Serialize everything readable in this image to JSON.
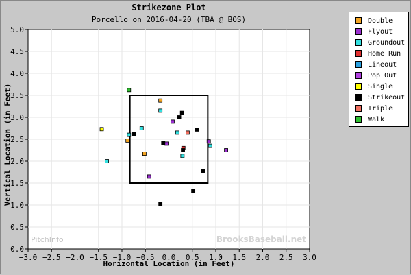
{
  "chart_data": {
    "type": "scatter",
    "title": "Strikezone Plot",
    "subtitle": "Porcello on 2016-04-20 (TBA @ BOS)",
    "xlabel": "Horizontal Location (in Feet)",
    "ylabel": "Vertical Location (in Feet)",
    "xlim": [
      -3.0,
      3.0
    ],
    "ylim": [
      0.0,
      5.0
    ],
    "x_ticks": [
      "−3.0",
      "−2.5",
      "−2.0",
      "−1.5",
      "−1.0",
      "−0.5",
      "0.0",
      "0.5",
      "1.0",
      "1.5",
      "2.0",
      "2.5",
      "3.0"
    ],
    "y_ticks": [
      "0.0",
      "0.5",
      "1.0",
      "1.5",
      "2.0",
      "2.5",
      "3.0",
      "3.5",
      "4.0",
      "4.5",
      "5.0"
    ],
    "grid": true,
    "legend_position": "top-right",
    "strike_zone": {
      "x": [
        -0.83,
        0.83
      ],
      "y": [
        1.5,
        3.5
      ]
    },
    "series": [
      {
        "name": "Double",
        "color": "#f5a623",
        "points": [
          [
            -0.18,
            3.38
          ],
          [
            -0.88,
            2.47
          ],
          [
            -0.52,
            2.17
          ]
        ]
      },
      {
        "name": "Flyout",
        "color": "#9b30d0",
        "points": [
          [
            0.08,
            2.9
          ],
          [
            -0.05,
            2.4
          ],
          [
            0.85,
            2.45
          ],
          [
            1.22,
            2.25
          ],
          [
            -0.42,
            1.65
          ]
        ]
      },
      {
        "name": "Groundout",
        "color": "#33e0e0",
        "points": [
          [
            -0.18,
            3.15
          ],
          [
            -0.58,
            2.75
          ],
          [
            0.18,
            2.65
          ],
          [
            -0.85,
            2.6
          ],
          [
            -1.32,
            2.0
          ],
          [
            0.29,
            2.12
          ],
          [
            0.88,
            2.35
          ]
        ]
      },
      {
        "name": "Home Run",
        "color": "#e03030",
        "points": [
          [
            0.31,
            2.3
          ]
        ]
      },
      {
        "name": "Lineout",
        "color": "#2aa0e0",
        "points": []
      },
      {
        "name": "Pop Out",
        "color": "#b040e0",
        "points": []
      },
      {
        "name": "Single",
        "color": "#ffff00",
        "points": [
          [
            -1.43,
            2.73
          ]
        ]
      },
      {
        "name": "Strikeout",
        "color": "#000000",
        "points": [
          [
            0.28,
            3.1
          ],
          [
            0.22,
            3.0
          ],
          [
            0.6,
            2.72
          ],
          [
            -0.75,
            2.62
          ],
          [
            -0.12,
            2.42
          ],
          [
            0.3,
            2.25
          ],
          [
            0.73,
            1.78
          ],
          [
            0.52,
            1.32
          ],
          [
            -0.18,
            1.03
          ]
        ]
      },
      {
        "name": "Triple",
        "color": "#f07060",
        "points": [
          [
            0.4,
            2.65
          ]
        ]
      },
      {
        "name": "Walk",
        "color": "#30c030",
        "points": [
          [
            -0.85,
            3.62
          ]
        ]
      }
    ],
    "watermark_left": "PitchInfo",
    "watermark_right": "BrooksBaseball.net"
  }
}
